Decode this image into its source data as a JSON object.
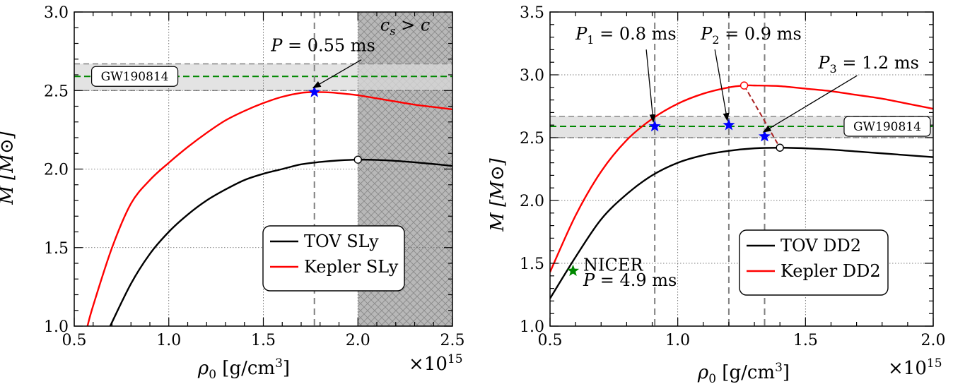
{
  "chart_data": [
    {
      "type": "line",
      "panel": "left",
      "xlabel": "ρ0 [g/cm3]",
      "x_multiplier": "×10^15",
      "ylabel": "M [M⊙]",
      "xlim": [
        0.5,
        2.5
      ],
      "ylim": [
        1.0,
        3.0
      ],
      "xticks": [
        "0.5",
        "1.0",
        "1.5",
        "2.0",
        "2.5"
      ],
      "yticks": [
        "1.0",
        "1.5",
        "2.0",
        "2.5",
        "3.0"
      ],
      "grid": true,
      "legend_position": "bottom-right",
      "series": [
        {
          "name": "TOV SLy",
          "color": "#000000",
          "x": [
            0.69,
            0.8,
            0.9,
            1.0,
            1.1,
            1.2,
            1.3,
            1.4,
            1.5,
            1.6,
            1.7,
            1.8,
            1.9,
            2.0,
            2.1,
            2.2,
            2.3,
            2.4,
            2.5
          ],
          "y": [
            1.0,
            1.27,
            1.46,
            1.6,
            1.71,
            1.8,
            1.87,
            1.93,
            1.97,
            2.0,
            2.03,
            2.045,
            2.055,
            2.06,
            2.058,
            2.052,
            2.043,
            2.032,
            2.02
          ]
        },
        {
          "name": "Kepler SLy",
          "color": "#ff0000",
          "x": [
            0.57,
            0.6,
            0.7,
            0.8,
            0.9,
            1.0,
            1.1,
            1.2,
            1.3,
            1.4,
            1.5,
            1.6,
            1.7,
            1.77,
            1.85,
            1.9,
            2.0,
            2.1,
            2.2,
            2.3,
            2.4,
            2.5
          ],
          "y": [
            1.0,
            1.13,
            1.5,
            1.78,
            1.93,
            2.04,
            2.14,
            2.23,
            2.31,
            2.37,
            2.42,
            2.46,
            2.485,
            2.49,
            2.488,
            2.483,
            2.47,
            2.45,
            2.43,
            2.41,
            2.395,
            2.38
          ]
        }
      ],
      "markers": [
        {
          "kind": "star",
          "color": "#0000ff",
          "x": 1.77,
          "y": 2.49
        },
        {
          "kind": "open-circle",
          "color": "#000000",
          "x": 2.0,
          "y": 2.06
        }
      ],
      "vlines": [
        1.77
      ],
      "gw_band": {
        "low": 2.5,
        "high": 2.67,
        "center": 2.59,
        "label": "GW190814",
        "band_color": "#d9d9d9",
        "line_color": "#008800"
      },
      "shaded_region": {
        "from": 2.0,
        "to": 2.5,
        "label": "cs > c",
        "color": "#b5b5b5"
      },
      "annotations": [
        {
          "text": "P = 0.55 ms",
          "x": 1.54,
          "y": 2.75,
          "arrow_to": [
            1.77,
            2.49
          ]
        }
      ]
    },
    {
      "type": "line",
      "panel": "right",
      "xlabel": "ρ0 [g/cm3]",
      "x_multiplier": "×10^15",
      "ylabel": "M [M⊙]",
      "xlim": [
        0.5,
        2.0
      ],
      "ylim": [
        1.0,
        3.5
      ],
      "xticks": [
        "0.5",
        "1.0",
        "1.5",
        "2.0"
      ],
      "yticks": [
        "1.0",
        "1.5",
        "2.0",
        "2.5",
        "3.0",
        "3.5"
      ],
      "grid": true,
      "legend_position": "bottom-right",
      "series": [
        {
          "name": "TOV DD2",
          "color": "#000000",
          "x": [
            0.5,
            0.6,
            0.7,
            0.8,
            0.9,
            1.0,
            1.1,
            1.2,
            1.3,
            1.4,
            1.5,
            1.6,
            1.7,
            1.8,
            1.9,
            2.0
          ],
          "y": [
            1.22,
            1.55,
            1.85,
            2.05,
            2.2,
            2.3,
            2.36,
            2.395,
            2.415,
            2.42,
            2.415,
            2.405,
            2.39,
            2.375,
            2.36,
            2.345
          ]
        },
        {
          "name": "Kepler DD2",
          "color": "#ff0000",
          "x": [
            0.5,
            0.6,
            0.7,
            0.8,
            0.9,
            1.0,
            1.1,
            1.2,
            1.26,
            1.3,
            1.4,
            1.5,
            1.6,
            1.7,
            1.8,
            1.9,
            2.0
          ],
          "y": [
            1.43,
            1.88,
            2.23,
            2.48,
            2.65,
            2.77,
            2.85,
            2.9,
            2.915,
            2.915,
            2.91,
            2.89,
            2.87,
            2.84,
            2.81,
            2.77,
            2.73
          ]
        },
        {
          "color": "#aa2222",
          "x": [
            1.26,
            1.4
          ],
          "y": [
            2.915,
            2.42
          ]
        }
      ],
      "markers": [
        {
          "kind": "star",
          "color": "#0000ff",
          "x": 0.91,
          "y": 2.59
        },
        {
          "kind": "star",
          "color": "#0000ff",
          "x": 1.2,
          "y": 2.6
        },
        {
          "kind": "star",
          "color": "#0000ff",
          "x": 1.34,
          "y": 2.51
        },
        {
          "kind": "star",
          "color": "#008800",
          "x": 0.59,
          "y": 1.44
        },
        {
          "kind": "open-circle",
          "color": "#ff0000",
          "x": 1.26,
          "y": 2.915
        },
        {
          "kind": "open-circle",
          "color": "#000000",
          "x": 1.4,
          "y": 2.42
        }
      ],
      "vlines": [
        0.91,
        1.2,
        1.34
      ],
      "gw_band": {
        "low": 2.5,
        "high": 2.67,
        "center": 2.59,
        "label": "GW190814",
        "band_color": "#d9d9d9",
        "line_color": "#008800"
      },
      "annotations": [
        {
          "text": "P1 = 0.8 ms",
          "x": 0.6,
          "y": 3.28,
          "arrow_to": [
            0.91,
            2.59
          ]
        },
        {
          "text": "P2 = 0.9 ms",
          "x": 1.09,
          "y": 3.28,
          "arrow_to": [
            1.2,
            2.6
          ]
        },
        {
          "text": "P3 = 1.2 ms",
          "x": 1.55,
          "y": 3.05,
          "arrow_to": [
            1.34,
            2.51
          ]
        },
        {
          "text": "NICER",
          "x": 0.63,
          "y": 1.44
        },
        {
          "text": "P = 4.9 ms",
          "x": 0.63,
          "y": 1.32
        }
      ]
    }
  ]
}
